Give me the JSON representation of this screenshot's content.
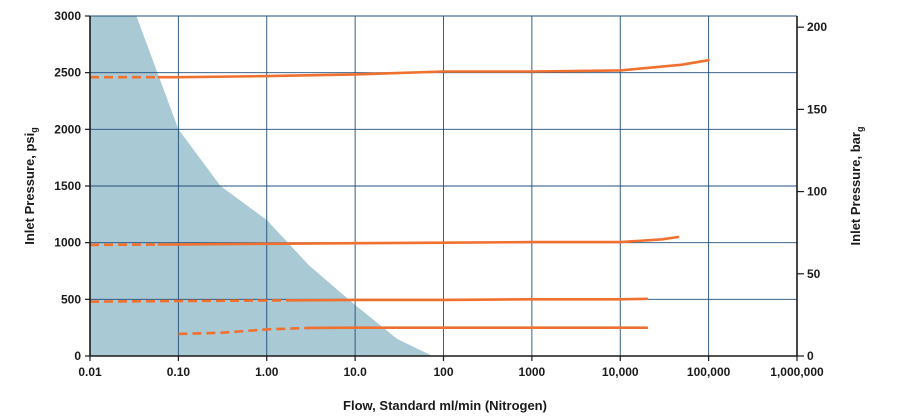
{
  "chart_data": {
    "type": "line",
    "title": "",
    "xlabel": "Flow, Standard ml/min (Nitrogen)",
    "ylabel_left": {
      "text": "Inlet Pressure, psi",
      "subscript": "g"
    },
    "ylabel_right": {
      "text": "Inlet Pressure, bar",
      "subscript": "g"
    },
    "x_scale": "log",
    "xlim": [
      0.01,
      1000000
    ],
    "ylim_left": [
      0,
      3000
    ],
    "ylim_right": [
      0,
      206.8
    ],
    "x_ticks": [
      {
        "value": 0.01,
        "label": "0.01"
      },
      {
        "value": 0.1,
        "label": "0.10"
      },
      {
        "value": 1,
        "label": "1.00"
      },
      {
        "value": 10,
        "label": "10.0"
      },
      {
        "value": 100,
        "label": "100"
      },
      {
        "value": 1000,
        "label": "1000"
      },
      {
        "value": 10000,
        "label": "10,000"
      },
      {
        "value": 100000,
        "label": "100,000"
      },
      {
        "value": 1000000,
        "label": "1,000,000"
      }
    ],
    "y_ticks_left": [
      {
        "value": 0,
        "label": "0"
      },
      {
        "value": 500,
        "label": "500"
      },
      {
        "value": 1000,
        "label": "1000"
      },
      {
        "value": 1500,
        "label": "1500"
      },
      {
        "value": 2000,
        "label": "2000"
      },
      {
        "value": 2500,
        "label": "2500"
      },
      {
        "value": 3000,
        "label": "3000"
      }
    ],
    "y_ticks_right": [
      {
        "value": 0,
        "label": "0"
      },
      {
        "value": 50,
        "label": "50"
      },
      {
        "value": 100,
        "label": "100"
      },
      {
        "value": 150,
        "label": "150"
      },
      {
        "value": 200,
        "label": "200"
      }
    ],
    "grid": true,
    "colors": {
      "series": "#f07030",
      "region_fill": "#a9c9d5",
      "grid": "#1f4e79",
      "axis": "#1a1a1a"
    },
    "shaded_region": {
      "boundary": [
        {
          "x": 0.0335,
          "y": 3000
        },
        {
          "x": 0.1,
          "y": 2000
        },
        {
          "x": 0.3,
          "y": 1500
        },
        {
          "x": 1,
          "y": 1200
        },
        {
          "x": 3,
          "y": 800
        },
        {
          "x": 10,
          "y": 450
        },
        {
          "x": 30,
          "y": 150
        },
        {
          "x": 75,
          "y": 0
        }
      ]
    },
    "series": [
      {
        "dashed_until_x": 0.06,
        "points": [
          {
            "x": 0.01,
            "y": 2460
          },
          {
            "x": 0.1,
            "y": 2460
          },
          {
            "x": 1,
            "y": 2470
          },
          {
            "x": 10,
            "y": 2485
          },
          {
            "x": 100,
            "y": 2510
          },
          {
            "x": 1000,
            "y": 2510
          },
          {
            "x": 10000,
            "y": 2520
          },
          {
            "x": 50000,
            "y": 2570
          },
          {
            "x": 100000,
            "y": 2610
          }
        ]
      },
      {
        "dashed_until_x": 0.06,
        "points": [
          {
            "x": 0.01,
            "y": 980
          },
          {
            "x": 0.1,
            "y": 985
          },
          {
            "x": 1,
            "y": 990
          },
          {
            "x": 10,
            "y": 995
          },
          {
            "x": 100,
            "y": 1000
          },
          {
            "x": 1000,
            "y": 1005
          },
          {
            "x": 10000,
            "y": 1005
          },
          {
            "x": 30000,
            "y": 1030
          },
          {
            "x": 45000,
            "y": 1050
          }
        ]
      },
      {
        "dashed_until_x": 2,
        "points": [
          {
            "x": 0.01,
            "y": 480
          },
          {
            "x": 0.1,
            "y": 485
          },
          {
            "x": 1,
            "y": 490
          },
          {
            "x": 10,
            "y": 495
          },
          {
            "x": 100,
            "y": 495
          },
          {
            "x": 1000,
            "y": 500
          },
          {
            "x": 10000,
            "y": 500
          },
          {
            "x": 20000,
            "y": 505
          }
        ]
      },
      {
        "dashed_until_x": 3,
        "points": [
          {
            "x": 0.1,
            "y": 195
          },
          {
            "x": 0.3,
            "y": 205
          },
          {
            "x": 1,
            "y": 235
          },
          {
            "x": 3,
            "y": 248
          },
          {
            "x": 10,
            "y": 250
          },
          {
            "x": 100,
            "y": 250
          },
          {
            "x": 1000,
            "y": 250
          },
          {
            "x": 10000,
            "y": 250
          },
          {
            "x": 20000,
            "y": 250
          }
        ]
      }
    ]
  }
}
